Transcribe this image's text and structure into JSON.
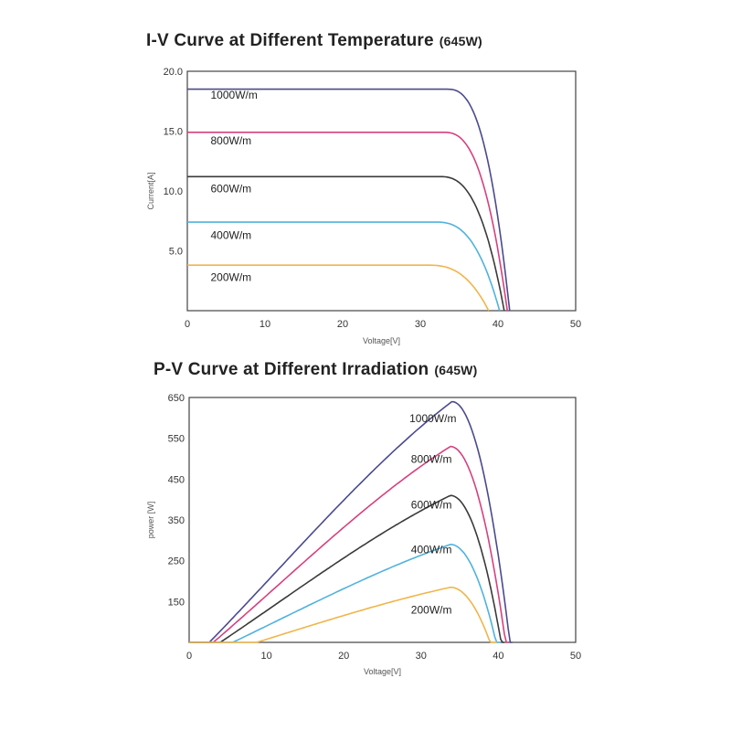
{
  "colors": {
    "c1000": "#4a4a8e",
    "c800": "#d6407f",
    "c600": "#3a3a3a",
    "c400": "#4fb2de",
    "c200": "#f0b54a",
    "axis": "#444444"
  },
  "chart_data": [
    {
      "id": "iv",
      "type": "line",
      "title": "I-V Curve at Different Temperature",
      "title_suffix": "(645W)",
      "xlabel": "Voltage[V]",
      "ylabel": "Current[A]",
      "xlim": [
        0,
        50
      ],
      "ylim": [
        0,
        20
      ],
      "xticks": [
        0,
        10,
        20,
        30,
        40,
        50
      ],
      "yticks": [
        5.0,
        10.0,
        15.0,
        20.0
      ],
      "ytick_labels": [
        "5.0",
        "10.0",
        "15.0",
        "20.0"
      ],
      "series": [
        {
          "name": "1000W/m",
          "color_key": "c1000",
          "isc": 18.5,
          "voc": 41.5,
          "knee": 33.5,
          "label_at": [
            3,
            17.7
          ]
        },
        {
          "name": "800W/m",
          "color_key": "c800",
          "isc": 14.9,
          "voc": 41.2,
          "knee": 33.0,
          "label_at": [
            3,
            13.9
          ]
        },
        {
          "name": "600W/m",
          "color_key": "c600",
          "isc": 11.2,
          "voc": 40.8,
          "knee": 32.5,
          "label_at": [
            3,
            9.9
          ]
        },
        {
          "name": "400W/m",
          "color_key": "c400",
          "isc": 7.4,
          "voc": 40.2,
          "knee": 32.0,
          "label_at": [
            3,
            6.0
          ]
        },
        {
          "name": "200W/m",
          "color_key": "c200",
          "isc": 3.8,
          "voc": 38.8,
          "knee": 31.0,
          "label_at": [
            3,
            2.5
          ]
        }
      ]
    },
    {
      "id": "pv",
      "type": "line",
      "title": "P-V Curve at Different Irradiation",
      "title_suffix": "(645W)",
      "xlabel": "Voltage[V]",
      "ylabel": "power [W]",
      "xlim": [
        0,
        50
      ],
      "ylim": [
        50,
        650
      ],
      "xticks": [
        0,
        10,
        20,
        30,
        40,
        50
      ],
      "yticks": [
        150,
        250,
        350,
        450,
        550,
        650
      ],
      "ytick_labels": [
        "150",
        "250",
        "350",
        "450",
        "550",
        "650"
      ],
      "series": [
        {
          "name": "1000W/m",
          "color_key": "c1000",
          "pmax": 640,
          "vmp": 34.0,
          "voc": 41.8,
          "label_at": [
            28.5,
            590
          ]
        },
        {
          "name": "800W/m",
          "color_key": "c800",
          "pmax": 530,
          "vmp": 33.8,
          "voc": 41.3,
          "label_at": [
            28.7,
            490
          ]
        },
        {
          "name": "600W/m",
          "color_key": "c600",
          "pmax": 410,
          "vmp": 33.8,
          "voc": 40.8,
          "label_at": [
            28.7,
            378
          ]
        },
        {
          "name": "400W/m",
          "color_key": "c400",
          "pmax": 290,
          "vmp": 33.8,
          "voc": 40.3,
          "label_at": [
            28.7,
            268
          ]
        },
        {
          "name": "200W/m",
          "color_key": "c200",
          "pmax": 185,
          "vmp": 33.8,
          "voc": 39.8,
          "label_at": [
            28.7,
            120
          ]
        }
      ]
    }
  ]
}
